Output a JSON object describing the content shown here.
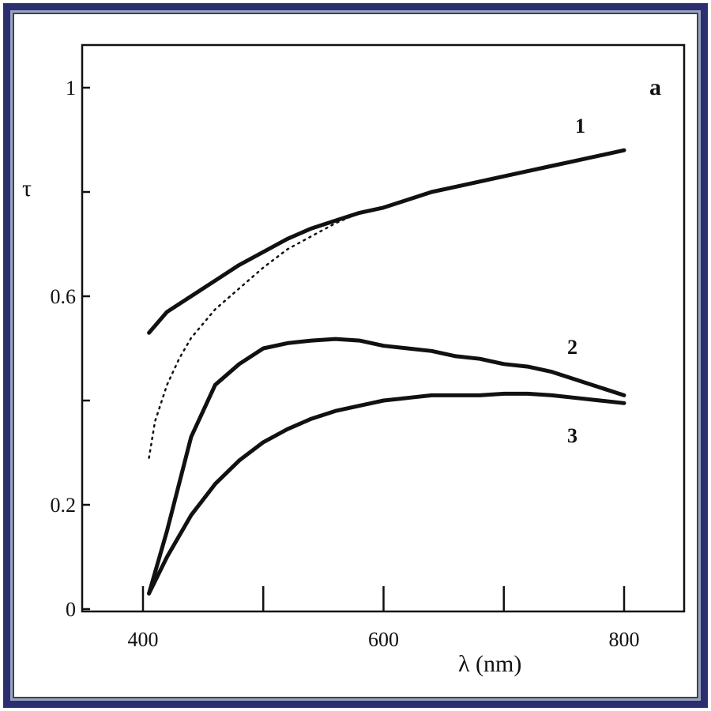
{
  "chart_data": {
    "type": "line",
    "panel_label": "a",
    "xlabel": "λ (nm)",
    "ylabel": "τ",
    "xlim": [
      350,
      850
    ],
    "ylim": [
      0,
      1.1
    ],
    "x_ticks": [
      {
        "value": 400,
        "label": "400"
      },
      {
        "value": 500,
        "label": ""
      },
      {
        "value": 600,
        "label": "600"
      },
      {
        "value": 700,
        "label": ""
      },
      {
        "value": 800,
        "label": "800"
      }
    ],
    "y_ticks": [
      {
        "value": 0,
        "label": "0"
      },
      {
        "value": 0.2,
        "label": "0.2"
      },
      {
        "value": 0.4,
        "label": ""
      },
      {
        "value": 0.6,
        "label": "0.6"
      },
      {
        "value": 0.8,
        "label": ""
      },
      {
        "value": 1.0,
        "label": "1"
      }
    ],
    "grid": false,
    "series": [
      {
        "name": "1",
        "style": "solid",
        "x": [
          405,
          420,
          440,
          460,
          480,
          500,
          520,
          540,
          560,
          580,
          600,
          620,
          640,
          660,
          680,
          700,
          720,
          740,
          760,
          780,
          800
        ],
        "y": [
          0.53,
          0.57,
          0.6,
          0.63,
          0.66,
          0.685,
          0.71,
          0.73,
          0.745,
          0.76,
          0.77,
          0.785,
          0.8,
          0.81,
          0.82,
          0.83,
          0.84,
          0.85,
          0.86,
          0.87,
          0.88
        ]
      },
      {
        "name": "",
        "style": "dotted",
        "x": [
          405,
          410,
          420,
          430,
          440,
          460,
          480,
          500,
          520,
          540,
          560,
          580
        ],
        "y": [
          0.29,
          0.36,
          0.43,
          0.48,
          0.52,
          0.575,
          0.615,
          0.655,
          0.69,
          0.715,
          0.74,
          0.76
        ]
      },
      {
        "name": "2",
        "style": "solid",
        "x": [
          405,
          420,
          440,
          460,
          480,
          500,
          520,
          540,
          560,
          580,
          600,
          620,
          640,
          660,
          680,
          700,
          720,
          740,
          760,
          780,
          800
        ],
        "y": [
          0.03,
          0.15,
          0.33,
          0.43,
          0.47,
          0.5,
          0.51,
          0.515,
          0.518,
          0.515,
          0.505,
          0.5,
          0.495,
          0.485,
          0.48,
          0.47,
          0.465,
          0.455,
          0.44,
          0.425,
          0.41
        ]
      },
      {
        "name": "3",
        "style": "solid",
        "x": [
          405,
          420,
          440,
          460,
          480,
          500,
          520,
          540,
          560,
          580,
          600,
          620,
          640,
          660,
          680,
          700,
          720,
          740,
          760,
          780,
          800
        ],
        "y": [
          0.03,
          0.1,
          0.18,
          0.24,
          0.285,
          0.32,
          0.345,
          0.365,
          0.38,
          0.39,
          0.4,
          0.405,
          0.41,
          0.41,
          0.41,
          0.413,
          0.413,
          0.41,
          0.405,
          0.4,
          0.395
        ]
      }
    ]
  }
}
